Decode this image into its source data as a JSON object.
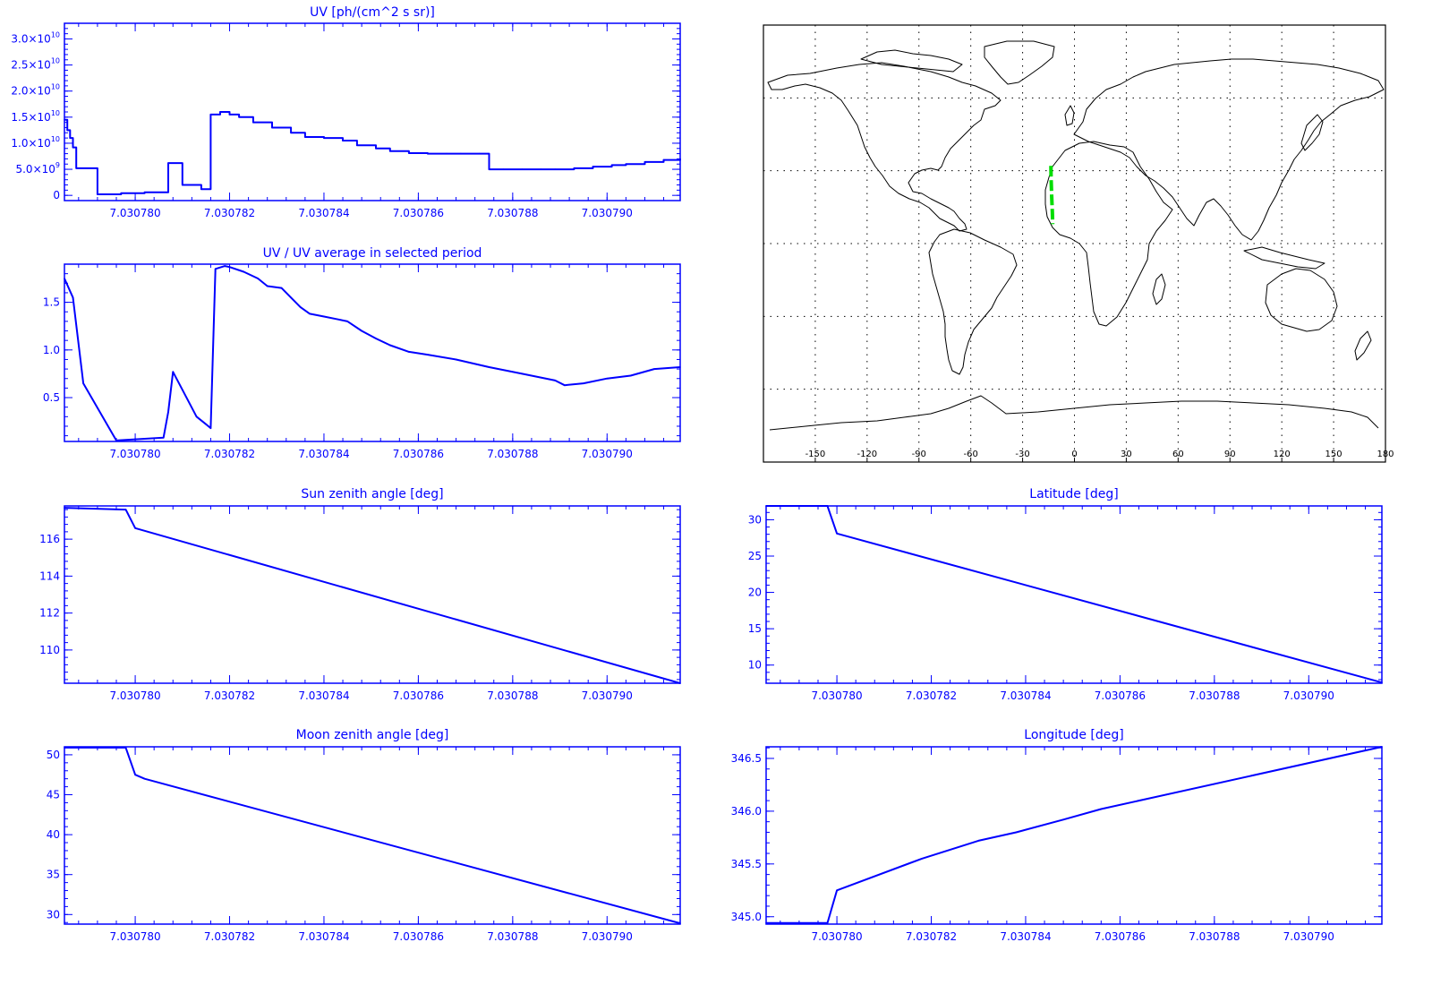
{
  "colors": {
    "axis": "#0000ff",
    "series": "#0000ff",
    "map_outline": "#000000",
    "map_track": "#00dd00",
    "map_grid": "#000000"
  },
  "chart_data": [
    {
      "id": "uv",
      "type": "line",
      "step": true,
      "title": "UV [ph/(cm^2 s sr)]",
      "xlabel": "",
      "ylabel": "",
      "xlim": [
        7.0307785,
        7.03079155
      ],
      "ylim": [
        -1000000000.0,
        33000000000.0
      ],
      "xticks": [
        7.030778,
        7.03078,
        7.030782,
        7.030784,
        7.030786,
        7.030788,
        7.03079
      ],
      "xtick_labels": [
        "7.030778",
        "7.030780",
        "7.030782",
        "7.030784",
        "7.030786",
        "7.030788",
        "7.030790"
      ],
      "yticks": [
        0,
        5000000000.0,
        10000000000.0,
        15000000000.0,
        20000000000.0,
        25000000000.0,
        30000000000.0
      ],
      "ytick_labels": [
        {
          "base": "0",
          "exp": ""
        },
        {
          "base": "5.0×10",
          "exp": "9"
        },
        {
          "base": "1.0×10",
          "exp": "10"
        },
        {
          "base": "1.5×10",
          "exp": "10"
        },
        {
          "base": "2.0×10",
          "exp": "10"
        },
        {
          "base": "2.5×10",
          "exp": "10"
        },
        {
          "base": "3.0×10",
          "exp": "10"
        }
      ],
      "x": [
        7.0307785,
        7.03077856,
        7.03077862,
        7.03077868,
        7.03077875,
        7.0307792,
        7.0307797,
        7.0307802,
        7.0307807,
        7.030781,
        7.0307814,
        7.0307816,
        7.0307818,
        7.030782,
        7.0307822,
        7.0307825,
        7.0307829,
        7.0307833,
        7.0307836,
        7.030784,
        7.0307844,
        7.0307847,
        7.0307851,
        7.0307854,
        7.0307858,
        7.0307862,
        7.0307866,
        7.0307869,
        7.0307873,
        7.0307875,
        7.0307878,
        7.0307882,
        7.0307886,
        7.0307889,
        7.0307893,
        7.0307897,
        7.0307901,
        7.0307904,
        7.0307908,
        7.0307912,
        7.03079155
      ],
      "values": [
        14500000000.0,
        12500000000.0,
        11000000000.0,
        9200000000.0,
        5200000000.0,
        200000000.0,
        400000000.0,
        600000000.0,
        6200000000.0,
        2000000000.0,
        1200000000.0,
        15500000000.0,
        16000000000.0,
        15500000000.0,
        15000000000.0,
        14000000000.0,
        13000000000.0,
        12000000000.0,
        11200000000.0,
        11000000000.0,
        10500000000.0,
        9600000000.0,
        9000000000.0,
        8500000000.0,
        8100000000.0,
        8000000000.0,
        8000000000.0,
        8000000000.0,
        8000000000.0,
        5000000000.0,
        5000000000.0,
        5000000000.0,
        5000000000.0,
        5000000000.0,
        5200000000.0,
        5500000000.0,
        5800000000.0,
        6000000000.0,
        6400000000.0,
        6800000000.0,
        7000000000.0
      ]
    },
    {
      "id": "uvratio",
      "type": "line",
      "title": "UV / UV average in selected period",
      "xlabel": "",
      "ylabel": "",
      "xlim": [
        7.0307785,
        7.03079155
      ],
      "ylim": [
        0.04,
        1.9
      ],
      "xticks": [
        7.030778,
        7.03078,
        7.030782,
        7.030784,
        7.030786,
        7.030788,
        7.03079
      ],
      "xtick_labels": [
        "7.030778",
        "7.030780",
        "7.030782",
        "7.030784",
        "7.030786",
        "7.030788",
        "7.030790"
      ],
      "yticks": [
        0.5,
        1.0,
        1.5
      ],
      "ytick_labels": [
        "0.5",
        "1.0",
        "1.5"
      ],
      "x": [
        7.0307785,
        7.03077868,
        7.0307789,
        7.0307796,
        7.0307806,
        7.0307807,
        7.0307808,
        7.0307813,
        7.0307815,
        7.0307816,
        7.0307817,
        7.0307819,
        7.030782,
        7.0307823,
        7.0307826,
        7.0307828,
        7.0307831,
        7.0307833,
        7.0307835,
        7.0307837,
        7.030784,
        7.0307843,
        7.0307845,
        7.0307848,
        7.0307851,
        7.0307854,
        7.0307858,
        7.0307862,
        7.0307868,
        7.0307875,
        7.0307882,
        7.0307889,
        7.0307891,
        7.0307895,
        7.03079,
        7.0307905,
        7.030791,
        7.03079155
      ],
      "values": [
        1.75,
        1.55,
        0.65,
        0.05,
        0.08,
        0.35,
        0.77,
        0.3,
        0.22,
        0.18,
        1.85,
        1.88,
        1.87,
        1.82,
        1.75,
        1.67,
        1.65,
        1.55,
        1.45,
        1.38,
        1.35,
        1.32,
        1.3,
        1.2,
        1.12,
        1.05,
        0.98,
        0.95,
        0.9,
        0.82,
        0.75,
        0.68,
        0.63,
        0.65,
        0.7,
        0.73,
        0.8,
        0.82
      ]
    },
    {
      "id": "sza",
      "type": "line",
      "title": "Sun zenith angle [deg]",
      "xlabel": "",
      "ylabel": "",
      "xlim": [
        7.0307785,
        7.03079155
      ],
      "ylim": [
        108.2,
        117.8
      ],
      "xticks": [
        7.030778,
        7.03078,
        7.030782,
        7.030784,
        7.030786,
        7.030788,
        7.03079
      ],
      "xtick_labels": [
        "7.030778",
        "7.030780",
        "7.030782",
        "7.030784",
        "7.030786",
        "7.030788",
        "7.030790"
      ],
      "yticks": [
        110,
        112,
        114,
        116
      ],
      "ytick_labels": [
        "110",
        "112",
        "114",
        "116"
      ],
      "x": [
        7.0307785,
        7.0307798,
        7.03078,
        7.03079155
      ],
      "values": [
        117.7,
        117.6,
        116.6,
        108.2
      ]
    },
    {
      "id": "lat",
      "type": "line",
      "title": "Latitude [deg]",
      "xlabel": "",
      "ylabel": "",
      "xlim": [
        7.0307785,
        7.03079155
      ],
      "ylim": [
        7.5,
        31.9
      ],
      "xticks": [
        7.030778,
        7.03078,
        7.030782,
        7.030784,
        7.030786,
        7.030788,
        7.03079
      ],
      "xtick_labels": [
        "7.030778",
        "7.030780",
        "7.030782",
        "7.030784",
        "7.030786",
        "7.030788",
        "7.030790"
      ],
      "yticks": [
        10,
        15,
        20,
        25,
        30
      ],
      "ytick_labels": [
        "10",
        "15",
        "20",
        "25",
        "30"
      ],
      "x": [
        7.0307785,
        7.0307798,
        7.03078,
        7.03079155
      ],
      "values": [
        31.9,
        31.9,
        28.1,
        7.6
      ]
    },
    {
      "id": "mza",
      "type": "line",
      "title": "Moon zenith angle [deg]",
      "xlabel": "",
      "ylabel": "",
      "xlim": [
        7.0307785,
        7.03079155
      ],
      "ylim": [
        28.8,
        51.0
      ],
      "xticks": [
        7.030778,
        7.03078,
        7.030782,
        7.030784,
        7.030786,
        7.030788,
        7.03079
      ],
      "xtick_labels": [
        "7.030778",
        "7.030780",
        "7.030782",
        "7.030784",
        "7.030786",
        "7.030788",
        "7.030790"
      ],
      "yticks": [
        30,
        35,
        40,
        45,
        50
      ],
      "ytick_labels": [
        "30",
        "35",
        "40",
        "45",
        "50"
      ],
      "x": [
        7.0307785,
        7.0307798,
        7.03078,
        7.0307802,
        7.03079155
      ],
      "values": [
        50.9,
        50.9,
        47.5,
        47.0,
        28.9
      ]
    },
    {
      "id": "lon",
      "type": "line",
      "title": "Longitude [deg]",
      "xlabel": "",
      "ylabel": "",
      "xlim": [
        7.0307785,
        7.03079155
      ],
      "ylim": [
        344.93,
        346.61
      ],
      "xticks": [
        7.030778,
        7.03078,
        7.030782,
        7.030784,
        7.030786,
        7.030788,
        7.03079
      ],
      "xtick_labels": [
        "7.030778",
        "7.030780",
        "7.030782",
        "7.030784",
        "7.030786",
        "7.030788",
        "7.030790"
      ],
      "yticks": [
        345.0,
        345.5,
        346.0,
        346.5
      ],
      "ytick_labels": [
        "345.0",
        "345.5",
        "346.0",
        "346.5"
      ],
      "x": [
        7.0307785,
        7.0307798,
        7.03078,
        7.0307818,
        7.030783,
        7.0307838,
        7.0307848,
        7.0307856,
        7.03079155
      ],
      "values": [
        344.94,
        344.94,
        345.25,
        345.55,
        345.72,
        345.8,
        345.92,
        346.02,
        346.61
      ]
    }
  ],
  "map": {
    "xticks": [
      -150,
      -120,
      -90,
      -60,
      -30,
      0,
      30,
      60,
      90,
      120,
      150,
      180
    ],
    "xtick_labels": [
      "-150",
      "-120",
      "-90",
      "-60",
      "-30",
      "0",
      "30",
      "60",
      "90",
      "120",
      "150",
      "180"
    ],
    "lon_range": [
      -180,
      180
    ],
    "lat_range": [
      -90,
      90
    ],
    "grid_lats": [
      -60,
      -30,
      0,
      30,
      60
    ],
    "track": [
      [
        -13.6,
        32.0
      ],
      [
        -13.5,
        27.0
      ],
      [
        -13.2,
        20.0
      ],
      [
        -12.8,
        13.0
      ],
      [
        -12.6,
        8.0
      ]
    ]
  }
}
